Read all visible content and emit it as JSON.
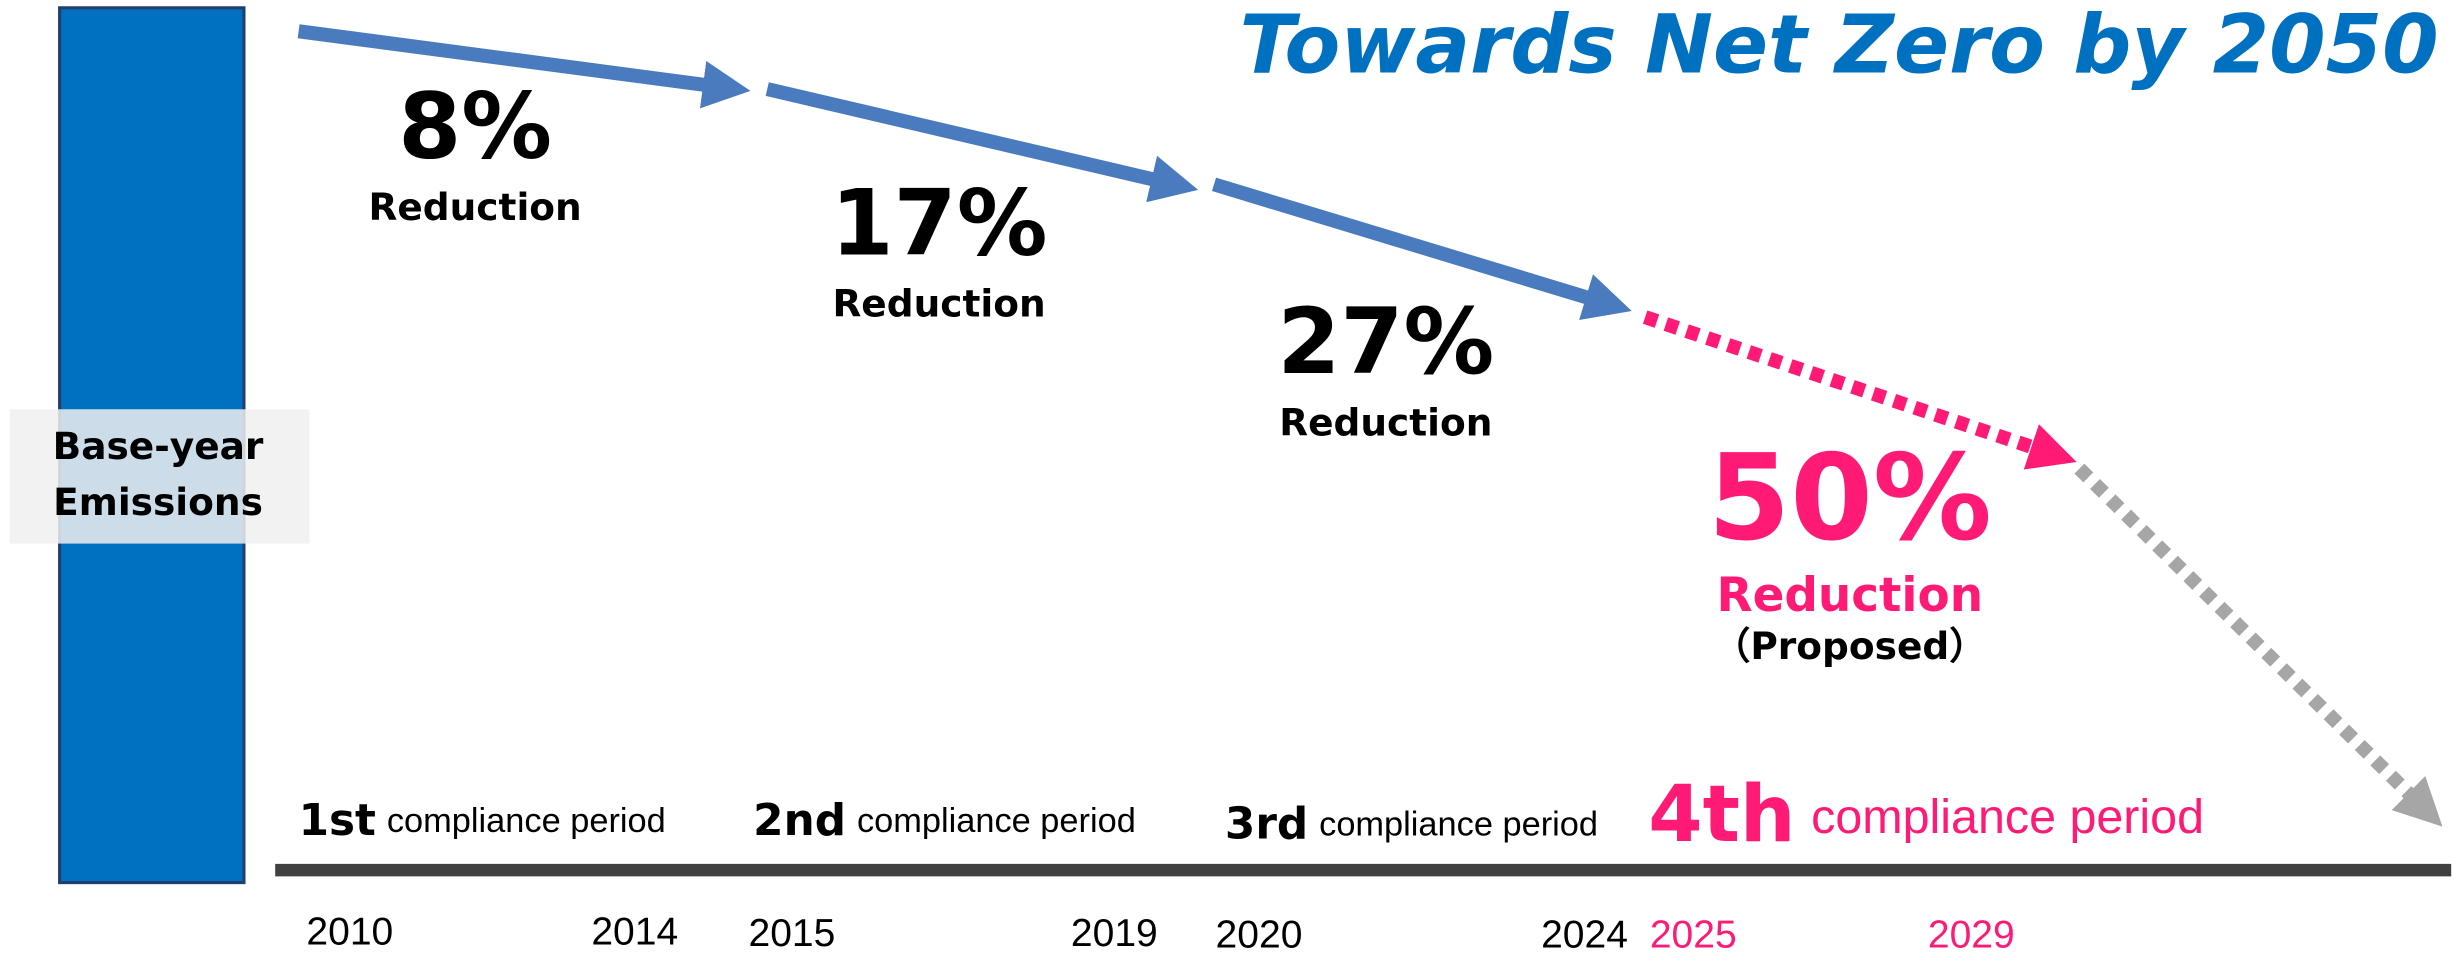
{
  "title": "Towards Net Zero by 2050",
  "base": {
    "label_lines": [
      "Base-year",
      "Emissions"
    ]
  },
  "periods": [
    {
      "ordinal": "1st",
      "label": "compliance period",
      "start": "2010",
      "end": "2014",
      "reduction": "8%",
      "reduction_label": "Reduction"
    },
    {
      "ordinal": "2nd",
      "label": "compliance period",
      "start": "2015",
      "end": "2019",
      "reduction": "17%",
      "reduction_label": "Reduction"
    },
    {
      "ordinal": "3rd",
      "label": "compliance period",
      "start": "2020",
      "end": "2024",
      "reduction": "27%",
      "reduction_label": "Reduction"
    },
    {
      "ordinal": "4th",
      "label": "compliance period",
      "start": "2025",
      "end": "2029",
      "reduction": "50%",
      "reduction_label": "Reduction",
      "note": "（Proposed）"
    }
  ]
}
